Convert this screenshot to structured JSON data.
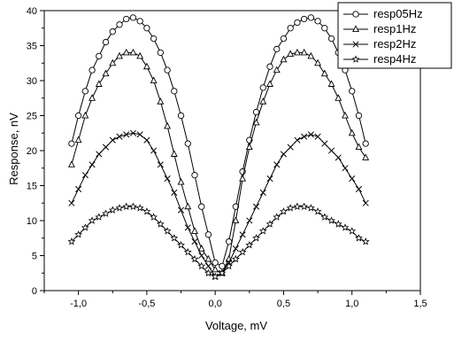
{
  "chart_data": {
    "type": "scatter",
    "title": "",
    "xlabel": "Voltage, mV",
    "ylabel": "Response, nV",
    "xlim": [
      -1.25,
      1.5
    ],
    "ylim": [
      0,
      40
    ],
    "xticks": [
      "-1,0",
      "-0,5",
      "0,0",
      "0,5",
      "1,0",
      "1,5"
    ],
    "yticks": [
      "0",
      "5",
      "10",
      "15",
      "20",
      "25",
      "30",
      "35",
      "40"
    ],
    "grid": false,
    "legend_position": "top-right",
    "series": [
      {
        "name": "resp05Hz",
        "marker": "circle",
        "x": [
          -1.05,
          -1.0,
          -0.95,
          -0.9,
          -0.85,
          -0.8,
          -0.75,
          -0.7,
          -0.65,
          -0.6,
          -0.55,
          -0.5,
          -0.45,
          -0.4,
          -0.35,
          -0.3,
          -0.25,
          -0.2,
          -0.15,
          -0.1,
          -0.05,
          0.0,
          0.05,
          0.1,
          0.15,
          0.2,
          0.25,
          0.3,
          0.35,
          0.4,
          0.45,
          0.5,
          0.55,
          0.6,
          0.65,
          0.7,
          0.75,
          0.8,
          0.85,
          0.9,
          0.95,
          1.0,
          1.05,
          1.1
        ],
        "y": [
          21,
          25,
          28.5,
          31.5,
          33.5,
          35.5,
          37,
          38,
          38.8,
          39,
          38.5,
          37.5,
          36,
          34,
          31.5,
          28.5,
          25,
          21,
          16.5,
          12,
          8,
          4,
          3.5,
          7,
          12,
          17,
          21.5,
          25.5,
          29,
          32,
          34.5,
          36,
          37.5,
          38.3,
          38.8,
          39,
          38.5,
          37.5,
          36,
          34,
          31.5,
          28.5,
          25,
          21
        ]
      },
      {
        "name": "resp1Hz",
        "marker": "triangle",
        "x": [
          -1.05,
          -1.0,
          -0.95,
          -0.9,
          -0.85,
          -0.8,
          -0.75,
          -0.7,
          -0.65,
          -0.6,
          -0.55,
          -0.5,
          -0.45,
          -0.4,
          -0.35,
          -0.3,
          -0.25,
          -0.2,
          -0.15,
          -0.1,
          -0.05,
          0.0,
          0.05,
          0.1,
          0.15,
          0.2,
          0.25,
          0.3,
          0.35,
          0.4,
          0.45,
          0.5,
          0.55,
          0.6,
          0.65,
          0.7,
          0.75,
          0.8,
          0.85,
          0.9,
          0.95,
          1.0,
          1.05,
          1.1
        ],
        "y": [
          18,
          21.5,
          25,
          27.5,
          29.5,
          31,
          32.5,
          33.5,
          34,
          34,
          33.5,
          32,
          30,
          27,
          23.5,
          19.5,
          15.5,
          12,
          8.5,
          6,
          4.5,
          3,
          2.5,
          4.5,
          10,
          16,
          20.5,
          24,
          27,
          29.5,
          31.5,
          33,
          33.8,
          34,
          34,
          33.5,
          32.5,
          31,
          29.5,
          27.5,
          25,
          22.5,
          20.5,
          19
        ]
      },
      {
        "name": "resp2Hz",
        "marker": "x",
        "x": [
          -1.05,
          -1.0,
          -0.95,
          -0.9,
          -0.85,
          -0.8,
          -0.75,
          -0.7,
          -0.65,
          -0.6,
          -0.55,
          -0.5,
          -0.45,
          -0.4,
          -0.35,
          -0.3,
          -0.25,
          -0.2,
          -0.15,
          -0.1,
          -0.05,
          0.0,
          0.05,
          0.1,
          0.15,
          0.2,
          0.25,
          0.3,
          0.35,
          0.4,
          0.45,
          0.5,
          0.55,
          0.6,
          0.65,
          0.7,
          0.75,
          0.8,
          0.85,
          0.9,
          0.95,
          1.0,
          1.05,
          1.1
        ],
        "y": [
          12.5,
          14.5,
          16.5,
          18,
          19.5,
          20.5,
          21.5,
          22,
          22.3,
          22.5,
          22.3,
          21.5,
          20,
          18,
          16,
          14,
          11.5,
          9,
          7,
          5,
          3.5,
          2,
          2.5,
          4,
          6,
          8,
          10,
          12,
          14,
          16,
          18,
          19.5,
          20.5,
          21.5,
          22,
          22.3,
          22,
          21,
          20,
          19,
          17.5,
          16,
          14.5,
          12.5
        ]
      },
      {
        "name": "resp4Hz",
        "marker": "star",
        "x": [
          -1.05,
          -1.0,
          -0.95,
          -0.9,
          -0.85,
          -0.8,
          -0.75,
          -0.7,
          -0.65,
          -0.6,
          -0.55,
          -0.5,
          -0.45,
          -0.4,
          -0.35,
          -0.3,
          -0.25,
          -0.2,
          -0.15,
          -0.1,
          -0.05,
          0.0,
          0.05,
          0.1,
          0.15,
          0.2,
          0.25,
          0.3,
          0.35,
          0.4,
          0.45,
          0.5,
          0.55,
          0.6,
          0.65,
          0.7,
          0.75,
          0.8,
          0.85,
          0.9,
          0.95,
          1.0,
          1.05,
          1.1
        ],
        "y": [
          7,
          8,
          9,
          10,
          10.5,
          11,
          11.5,
          11.8,
          12,
          12,
          11.8,
          11.3,
          10.5,
          9.5,
          8.5,
          7.5,
          6.5,
          5.5,
          4.5,
          3.5,
          2.5,
          2,
          2.5,
          3.5,
          4.5,
          5.5,
          6.5,
          7.5,
          8.5,
          9.5,
          10.5,
          11.3,
          11.8,
          12,
          12,
          11.8,
          11.3,
          10.5,
          10,
          9.5,
          9,
          8.5,
          7.5,
          7
        ]
      }
    ]
  }
}
